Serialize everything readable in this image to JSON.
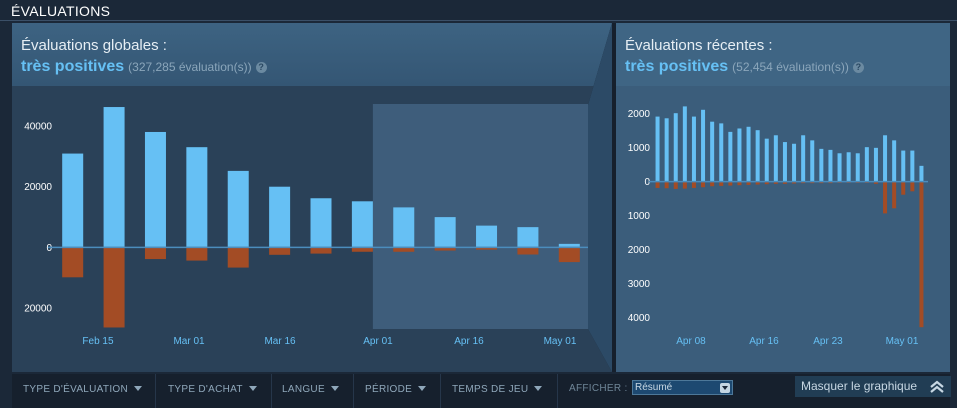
{
  "section_title": "ÉVALUATIONS",
  "overall": {
    "label": "Évaluations globales :",
    "rating": "très positives",
    "count": "(327,285 évaluation(s))",
    "help": "?"
  },
  "recent": {
    "label": "Évaluations récentes :",
    "rating": "très positives",
    "count": "(52,454 évaluation(s))",
    "help": "?"
  },
  "filters": {
    "type_evaluation": "TYPE D'ÉVALUATION",
    "type_achat": "TYPE D'ACHAT",
    "langue": "LANGUE",
    "periode": "PÉRIODE",
    "temps_de_jeu": "TEMPS DE JEU",
    "afficher_label": "AFFICHER :",
    "afficher_value": "Résumé",
    "hide_graph": "Masquer le graphique"
  },
  "colors": {
    "positive": "#66c0f4",
    "negative": "#a34c25",
    "zero_line": "#4b8dbd",
    "highlight": "#3e5d7b"
  },
  "chart_data": [
    {
      "type": "bar",
      "name": "overall",
      "ylim": [
        -27000,
        47000
      ],
      "yticks": [
        {
          "v": 40000,
          "label": "40000"
        },
        {
          "v": 20000,
          "label": "20000"
        },
        {
          "v": 0,
          "label": "0"
        },
        {
          "v": -20000,
          "label": "20000"
        }
      ],
      "xticks": [
        "Feb 15",
        "Mar 01",
        "Mar 16",
        "Apr 01",
        "Apr 16",
        "May 01"
      ],
      "positive": [
        30700,
        46000,
        37800,
        32800,
        25000,
        19800,
        16000,
        15000,
        13000,
        9800,
        7000,
        6500,
        1000
      ],
      "negative": [
        10000,
        26500,
        4000,
        4500,
        6800,
        2600,
        2200,
        1600,
        1600,
        1200,
        900,
        2500,
        5000
      ],
      "highlight_from_index": 8
    },
    {
      "type": "bar",
      "name": "recent",
      "ylim": [
        -4500,
        2300
      ],
      "yticks": [
        {
          "v": 2000,
          "label": "2000"
        },
        {
          "v": 1000,
          "label": "1000"
        },
        {
          "v": 0,
          "label": "0"
        },
        {
          "v": -1000,
          "label": "1000"
        },
        {
          "v": -2000,
          "label": "2000"
        },
        {
          "v": -3000,
          "label": "3000"
        },
        {
          "v": -4000,
          "label": "4000"
        }
      ],
      "xticks": [
        "Apr 08",
        "Apr 16",
        "Apr 23",
        "May 01"
      ],
      "positive": [
        1900,
        1850,
        2000,
        2200,
        1900,
        2100,
        1750,
        1700,
        1450,
        1550,
        1600,
        1500,
        1250,
        1350,
        1150,
        1100,
        1350,
        1200,
        950,
        920,
        820,
        850,
        820,
        1000,
        980,
        1350,
        1200,
        900,
        900,
        450
      ],
      "negative": [
        200,
        210,
        230,
        220,
        200,
        180,
        150,
        140,
        130,
        120,
        110,
        100,
        90,
        80,
        80,
        70,
        60,
        60,
        60,
        60,
        50,
        50,
        50,
        50,
        80,
        950,
        800,
        400,
        300,
        4300
      ]
    }
  ]
}
